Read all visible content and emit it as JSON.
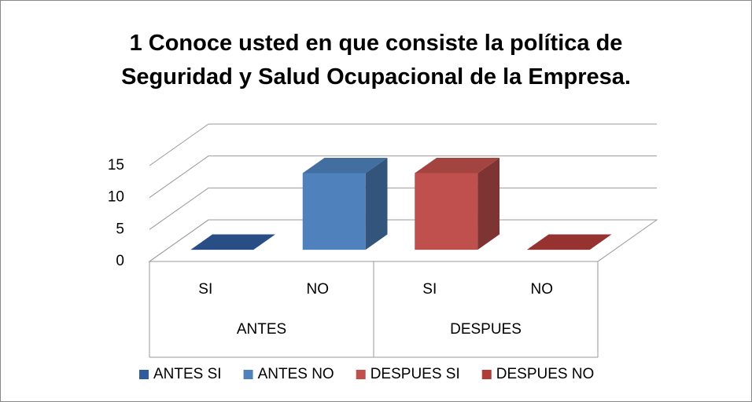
{
  "chart_data": {
    "type": "bar3d",
    "title": "1 Conoce usted en que consiste la política de Seguridad y Salud Ocupacional de la Empresa.",
    "categories": [
      "SI",
      "NO",
      "SI",
      "NO"
    ],
    "groups": [
      "ANTES",
      "DESPUES"
    ],
    "series": [
      {
        "name": "ANTES SI",
        "color": "#2f5c9c",
        "values": [
          0,
          null,
          null,
          null
        ]
      },
      {
        "name": "ANTES NO",
        "color": "#4f81bd",
        "values": [
          null,
          12,
          null,
          null
        ]
      },
      {
        "name": "DESPUES SI",
        "color": "#c0504d",
        "values": [
          null,
          null,
          12,
          null
        ]
      },
      {
        "name": "DESPUES NO",
        "color": "#b03c3a",
        "values": [
          null,
          null,
          null,
          0
        ]
      }
    ],
    "ylim": [
      0,
      15
    ],
    "yticks": [
      0,
      5,
      10,
      15
    ],
    "grid": true,
    "legend": "bottom"
  }
}
